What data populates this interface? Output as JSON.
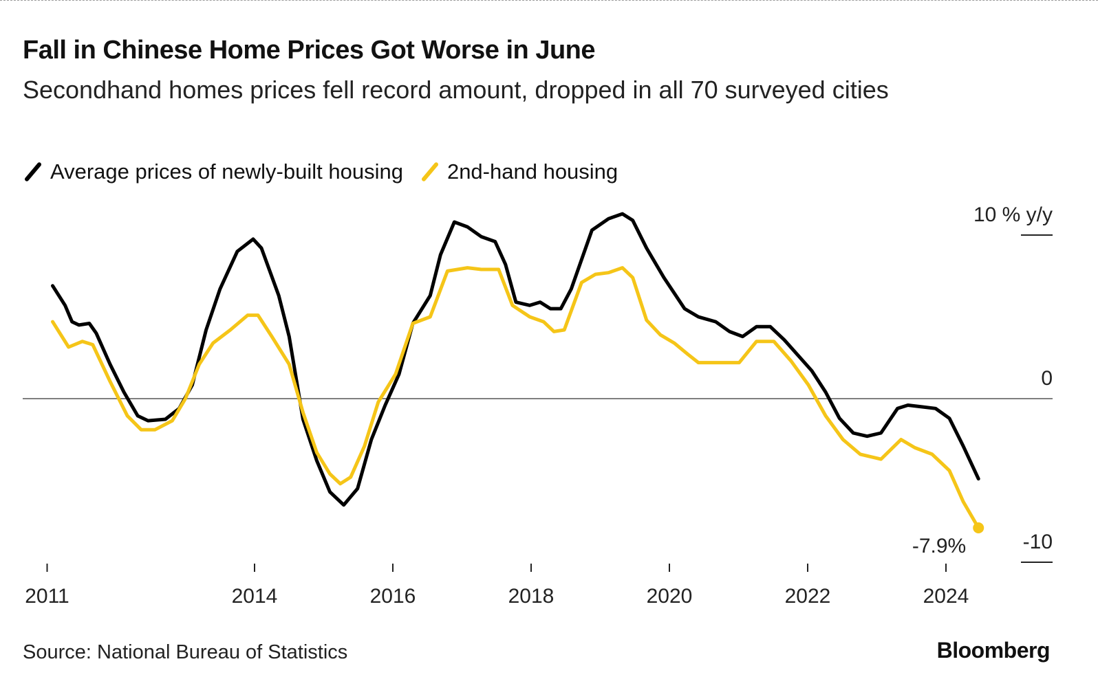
{
  "chart_data": {
    "type": "line",
    "title": "Fall in Chinese Home Prices Got Worse in June",
    "subtitle": "Secondhand homes prices fell record amount, dropped in all 70 surveyed cities",
    "ylabel": "10 % y/y",
    "ylim": [
      -10,
      10
    ],
    "yticks": [
      {
        "value": 10,
        "label": "10 % y/y"
      },
      {
        "value": 0,
        "label": "0"
      },
      {
        "value": -10,
        "label": "-10"
      }
    ],
    "xticks": [
      2011,
      2014,
      2016,
      2018,
      2020,
      2022,
      2024
    ],
    "legend_position": "top-left",
    "grid": false,
    "series": [
      {
        "name": "Average prices of newly-built housing",
        "color": "#000000",
        "points": [
          [
            2011.08,
            6.9
          ],
          [
            2011.26,
            5.7
          ],
          [
            2011.36,
            4.7
          ],
          [
            2011.46,
            4.5
          ],
          [
            2011.61,
            4.6
          ],
          [
            2011.71,
            4.0
          ],
          [
            2011.91,
            2.1
          ],
          [
            2012.11,
            0.4
          ],
          [
            2012.31,
            -1.05
          ],
          [
            2012.46,
            -1.35
          ],
          [
            2012.71,
            -1.26
          ],
          [
            2012.91,
            -0.6
          ],
          [
            2013.1,
            0.84
          ],
          [
            2013.3,
            4.2
          ],
          [
            2013.5,
            6.7
          ],
          [
            2013.75,
            9.0
          ],
          [
            2013.98,
            9.75
          ],
          [
            2014.1,
            9.2
          ],
          [
            2014.35,
            6.3
          ],
          [
            2014.5,
            3.8
          ],
          [
            2014.7,
            -1.26
          ],
          [
            2014.9,
            -3.8
          ],
          [
            2015.09,
            -5.7
          ],
          [
            2015.29,
            -6.5
          ],
          [
            2015.49,
            -5.5
          ],
          [
            2015.69,
            -2.5
          ],
          [
            2015.89,
            -0.4
          ],
          [
            2016.09,
            1.5
          ],
          [
            2016.29,
            4.6
          ],
          [
            2016.54,
            6.3
          ],
          [
            2016.69,
            8.8
          ],
          [
            2016.89,
            10.8
          ],
          [
            2017.08,
            10.5
          ],
          [
            2017.28,
            9.9
          ],
          [
            2017.48,
            9.6
          ],
          [
            2017.63,
            8.2
          ],
          [
            2017.78,
            5.9
          ],
          [
            2017.98,
            5.7
          ],
          [
            2018.13,
            5.9
          ],
          [
            2018.28,
            5.5
          ],
          [
            2018.43,
            5.5
          ],
          [
            2018.58,
            6.7
          ],
          [
            2018.88,
            10.3
          ],
          [
            2019.12,
            11.0
          ],
          [
            2019.32,
            11.3
          ],
          [
            2019.47,
            10.9
          ],
          [
            2019.67,
            9.2
          ],
          [
            2019.92,
            7.4
          ],
          [
            2020.22,
            5.5
          ],
          [
            2020.42,
            5.0
          ],
          [
            2020.67,
            4.7
          ],
          [
            2020.87,
            4.1
          ],
          [
            2021.06,
            3.8
          ],
          [
            2021.26,
            4.4
          ],
          [
            2021.46,
            4.4
          ],
          [
            2021.66,
            3.6
          ],
          [
            2022.06,
            1.7
          ],
          [
            2022.26,
            0.4
          ],
          [
            2022.46,
            -1.2
          ],
          [
            2022.66,
            -2.1
          ],
          [
            2022.86,
            -2.3
          ],
          [
            2023.06,
            -2.1
          ],
          [
            2023.3,
            -0.6
          ],
          [
            2023.45,
            -0.4
          ],
          [
            2023.65,
            -0.5
          ],
          [
            2023.85,
            -0.6
          ],
          [
            2024.05,
            -1.2
          ],
          [
            2024.25,
            -2.9
          ],
          [
            2024.47,
            -4.9
          ]
        ]
      },
      {
        "name": "2nd-hand housing",
        "color": "#F5C518",
        "points": [
          [
            2011.08,
            4.7
          ],
          [
            2011.31,
            3.15
          ],
          [
            2011.51,
            3.5
          ],
          [
            2011.66,
            3.3
          ],
          [
            2011.91,
            1.05
          ],
          [
            2012.16,
            -1.05
          ],
          [
            2012.36,
            -1.9
          ],
          [
            2012.56,
            -1.9
          ],
          [
            2012.81,
            -1.35
          ],
          [
            2013.0,
            0.0
          ],
          [
            2013.2,
            2.1
          ],
          [
            2013.4,
            3.4
          ],
          [
            2013.65,
            4.2
          ],
          [
            2013.9,
            5.1
          ],
          [
            2014.05,
            5.1
          ],
          [
            2014.25,
            3.8
          ],
          [
            2014.5,
            2.1
          ],
          [
            2014.7,
            -0.84
          ],
          [
            2014.9,
            -3.3
          ],
          [
            2015.09,
            -4.6
          ],
          [
            2015.24,
            -5.2
          ],
          [
            2015.39,
            -4.8
          ],
          [
            2015.59,
            -2.9
          ],
          [
            2015.79,
            -0.2
          ],
          [
            2016.04,
            1.5
          ],
          [
            2016.29,
            4.6
          ],
          [
            2016.54,
            5.0
          ],
          [
            2016.79,
            7.8
          ],
          [
            2017.08,
            8.0
          ],
          [
            2017.28,
            7.9
          ],
          [
            2017.53,
            7.9
          ],
          [
            2017.73,
            5.7
          ],
          [
            2017.98,
            5.0
          ],
          [
            2018.18,
            4.7
          ],
          [
            2018.33,
            4.1
          ],
          [
            2018.48,
            4.2
          ],
          [
            2018.73,
            7.1
          ],
          [
            2018.93,
            7.6
          ],
          [
            2019.12,
            7.7
          ],
          [
            2019.32,
            8.0
          ],
          [
            2019.47,
            7.4
          ],
          [
            2019.67,
            4.8
          ],
          [
            2019.87,
            3.9
          ],
          [
            2020.07,
            3.4
          ],
          [
            2020.27,
            2.7
          ],
          [
            2020.42,
            2.2
          ],
          [
            2020.67,
            2.2
          ],
          [
            2021.01,
            2.2
          ],
          [
            2021.26,
            3.5
          ],
          [
            2021.51,
            3.5
          ],
          [
            2021.76,
            2.3
          ],
          [
            2022.01,
            0.84
          ],
          [
            2022.26,
            -1.05
          ],
          [
            2022.51,
            -2.5
          ],
          [
            2022.76,
            -3.4
          ],
          [
            2023.06,
            -3.7
          ],
          [
            2023.35,
            -2.5
          ],
          [
            2023.55,
            -3.0
          ],
          [
            2023.8,
            -3.4
          ],
          [
            2024.05,
            -4.4
          ],
          [
            2024.25,
            -6.3
          ],
          [
            2024.47,
            -7.9
          ]
        ]
      }
    ],
    "annotations": [
      {
        "label": "-7.9%",
        "series": "2nd-hand housing",
        "x": 2024.47,
        "y": -7.9
      }
    ]
  },
  "source": "Source: National Bureau of Statistics",
  "logo": "Bloomberg"
}
